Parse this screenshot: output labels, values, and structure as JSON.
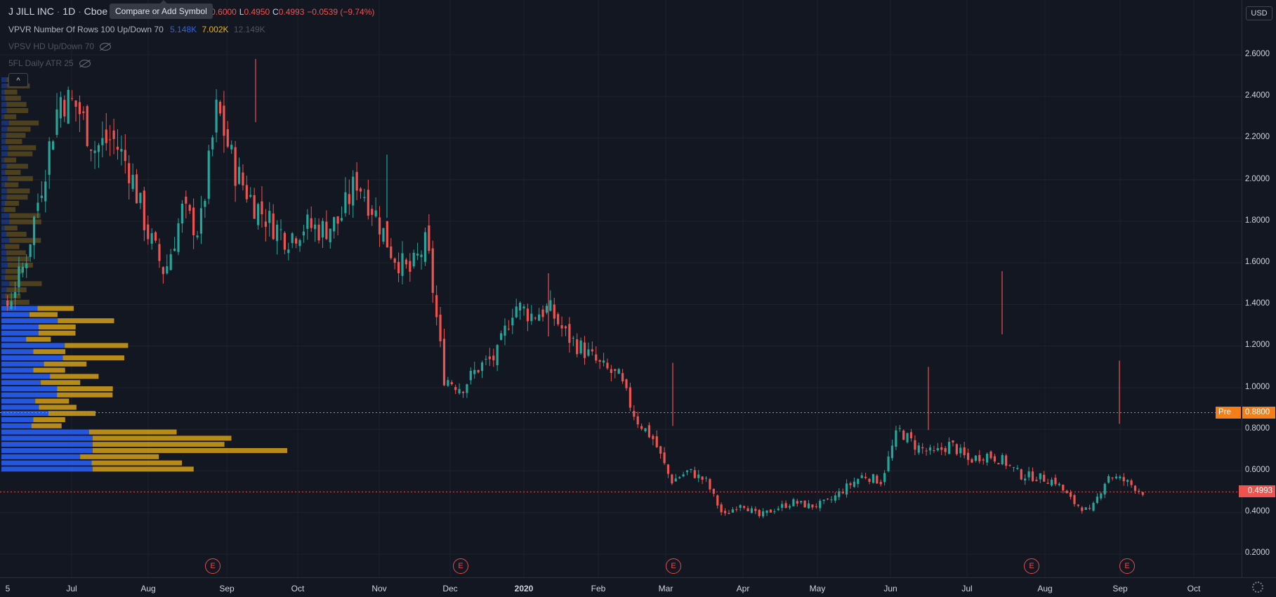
{
  "header": {
    "symbol": "J JILL INC",
    "interval": "1D",
    "exchange": "Cboe",
    "ohlc_tail": "0",
    "high_label": "H",
    "high": "0.6000",
    "low_label": "L",
    "low": "0.4950",
    "close_label": "C",
    "close": "0.4993",
    "change": "−0.0539 (−9.74%)"
  },
  "tooltip": "Compare or Add Symbol",
  "indicators": {
    "vpvr_label": "VPVR Number Of Rows 100 Up/Down 70",
    "vpvr_up": "5.148K",
    "vpvr_down": "7.002K",
    "vpvr_total": "12.149K",
    "vpsv_label": "VPSV HD Up/Down 70",
    "atr_label": "5FL Daily ATR 25"
  },
  "currency": "USD",
  "price_axis": {
    "ticks": [
      "2.6000",
      "2.4000",
      "2.2000",
      "2.0000",
      "1.8000",
      "1.6000",
      "1.4000",
      "1.2000",
      "1.0000",
      "0.8000",
      "0.6000",
      "0.4000",
      "0.2000"
    ],
    "pre_label": "Pre",
    "pre_value": "0.8800",
    "last_value": "0.4993"
  },
  "time_axis": [
    "5",
    "Jul",
    "Aug",
    "Sep",
    "Oct",
    "Nov",
    "Dec",
    "2020",
    "Feb",
    "Mar",
    "Apr",
    "May",
    "Jun",
    "Jul",
    "Aug",
    "Sep",
    "Oct"
  ],
  "earnings_marker": "E",
  "colors": {
    "up": "#26a69a",
    "down": "#ef5350",
    "vp_up": "#2962ff",
    "vp_down": "#d4a017",
    "pre": "#f57f17",
    "last": "#ef5350"
  },
  "chart_data": {
    "type": "candlestick",
    "ylim": [
      0.15,
      2.7
    ],
    "price_points": [
      {
        "x": "Jun 20",
        "close": 1.4
      },
      {
        "x": "Jun 28",
        "close": 1.6
      },
      {
        "x": "Jul 5",
        "close": 2.0
      },
      {
        "x": "Jul 10",
        "close": 2.4
      },
      {
        "x": "Jul 15",
        "close": 2.35
      },
      {
        "x": "Jul 22",
        "close": 2.15
      },
      {
        "x": "Jul 29",
        "close": 2.2
      },
      {
        "x": "Aug 5",
        "close": 2.05
      },
      {
        "x": "Aug 12",
        "close": 1.75
      },
      {
        "x": "Aug 19",
        "close": 1.55
      },
      {
        "x": "Aug 26",
        "close": 1.85
      },
      {
        "x": "Sep 2",
        "close": 1.75
      },
      {
        "x": "Sep 9",
        "close": 2.35
      },
      {
        "x": "Sep 16",
        "close": 2.05
      },
      {
        "x": "Sep 23",
        "close": 1.9
      },
      {
        "x": "Sep 30",
        "close": 1.8
      },
      {
        "x": "Oct 7",
        "close": 1.72
      },
      {
        "x": "Oct 14",
        "close": 1.78
      },
      {
        "x": "Oct 21",
        "close": 1.76
      },
      {
        "x": "Oct 28",
        "close": 1.8
      },
      {
        "x": "Nov 4",
        "close": 2.0
      },
      {
        "x": "Nov 11",
        "close": 1.85
      },
      {
        "x": "Nov 18",
        "close": 1.65
      },
      {
        "x": "Nov 25",
        "close": 1.55
      },
      {
        "x": "Dec 2",
        "close": 1.7
      },
      {
        "x": "Dec 9",
        "close": 1.05
      },
      {
        "x": "Dec 16",
        "close": 1.0
      },
      {
        "x": "Dec 23",
        "close": 1.1
      },
      {
        "x": "Jan 2",
        "close": 1.15
      },
      {
        "x": "Jan 9",
        "close": 1.4
      },
      {
        "x": "Jan 16",
        "close": 1.35
      },
      {
        "x": "Jan 23",
        "close": 1.38
      },
      {
        "x": "Jan 30",
        "close": 1.25
      },
      {
        "x": "Feb 6",
        "close": 1.18
      },
      {
        "x": "Feb 13",
        "close": 1.1
      },
      {
        "x": "Feb 20",
        "close": 1.05
      },
      {
        "x": "Feb 27",
        "close": 0.85
      },
      {
        "x": "Mar 5",
        "close": 0.75
      },
      {
        "x": "Mar 12",
        "close": 0.55
      },
      {
        "x": "Mar 19",
        "close": 0.6
      },
      {
        "x": "Mar 26",
        "close": 0.55
      },
      {
        "x": "Apr 2",
        "close": 0.38
      },
      {
        "x": "Apr 9",
        "close": 0.45
      },
      {
        "x": "Apr 16",
        "close": 0.38
      },
      {
        "x": "Apr 23",
        "close": 0.42
      },
      {
        "x": "Apr 30",
        "close": 0.45
      },
      {
        "x": "May 7",
        "close": 0.43
      },
      {
        "x": "May 14",
        "close": 0.45
      },
      {
        "x": "May 21",
        "close": 0.52
      },
      {
        "x": "May 28",
        "close": 0.58
      },
      {
        "x": "Jun 4",
        "close": 0.55
      },
      {
        "x": "Jun 11",
        "close": 0.8
      },
      {
        "x": "Jun 18",
        "close": 0.72
      },
      {
        "x": "Jun 25",
        "close": 0.68
      },
      {
        "x": "Jul 2",
        "close": 0.73
      },
      {
        "x": "Jul 9",
        "close": 0.65
      },
      {
        "x": "Jul 16",
        "close": 0.68
      },
      {
        "x": "Jul 23",
        "close": 0.65
      },
      {
        "x": "Jul 30",
        "close": 0.58
      },
      {
        "x": "Aug 6",
        "close": 0.57
      },
      {
        "x": "Aug 13",
        "close": 0.55
      },
      {
        "x": "Aug 20",
        "close": 0.45
      },
      {
        "x": "Aug 27",
        "close": 0.4
      },
      {
        "x": "Sep 3",
        "close": 0.58
      },
      {
        "x": "Sep 10",
        "close": 0.55
      },
      {
        "x": "Sep 11",
        "close": 0.4993
      }
    ],
    "spikes": [
      {
        "x": "Sep 12",
        "high": 2.58
      },
      {
        "x": "Nov 5",
        "high": 2.12
      },
      {
        "x": "Jan 13",
        "high": 1.55
      },
      {
        "x": "Mar 2",
        "high": 1.12
      },
      {
        "x": "Jun 12",
        "high": 1.1
      },
      {
        "x": "Jul 21",
        "high": 1.56
      },
      {
        "x": "Sep 1",
        "high": 1.13
      }
    ],
    "earnings_dates": [
      "Sep 1",
      "Dec 4",
      "Mar 4",
      "Aug 11",
      "Sep 1"
    ],
    "pre_market": 0.88,
    "last_price": 0.4993
  }
}
